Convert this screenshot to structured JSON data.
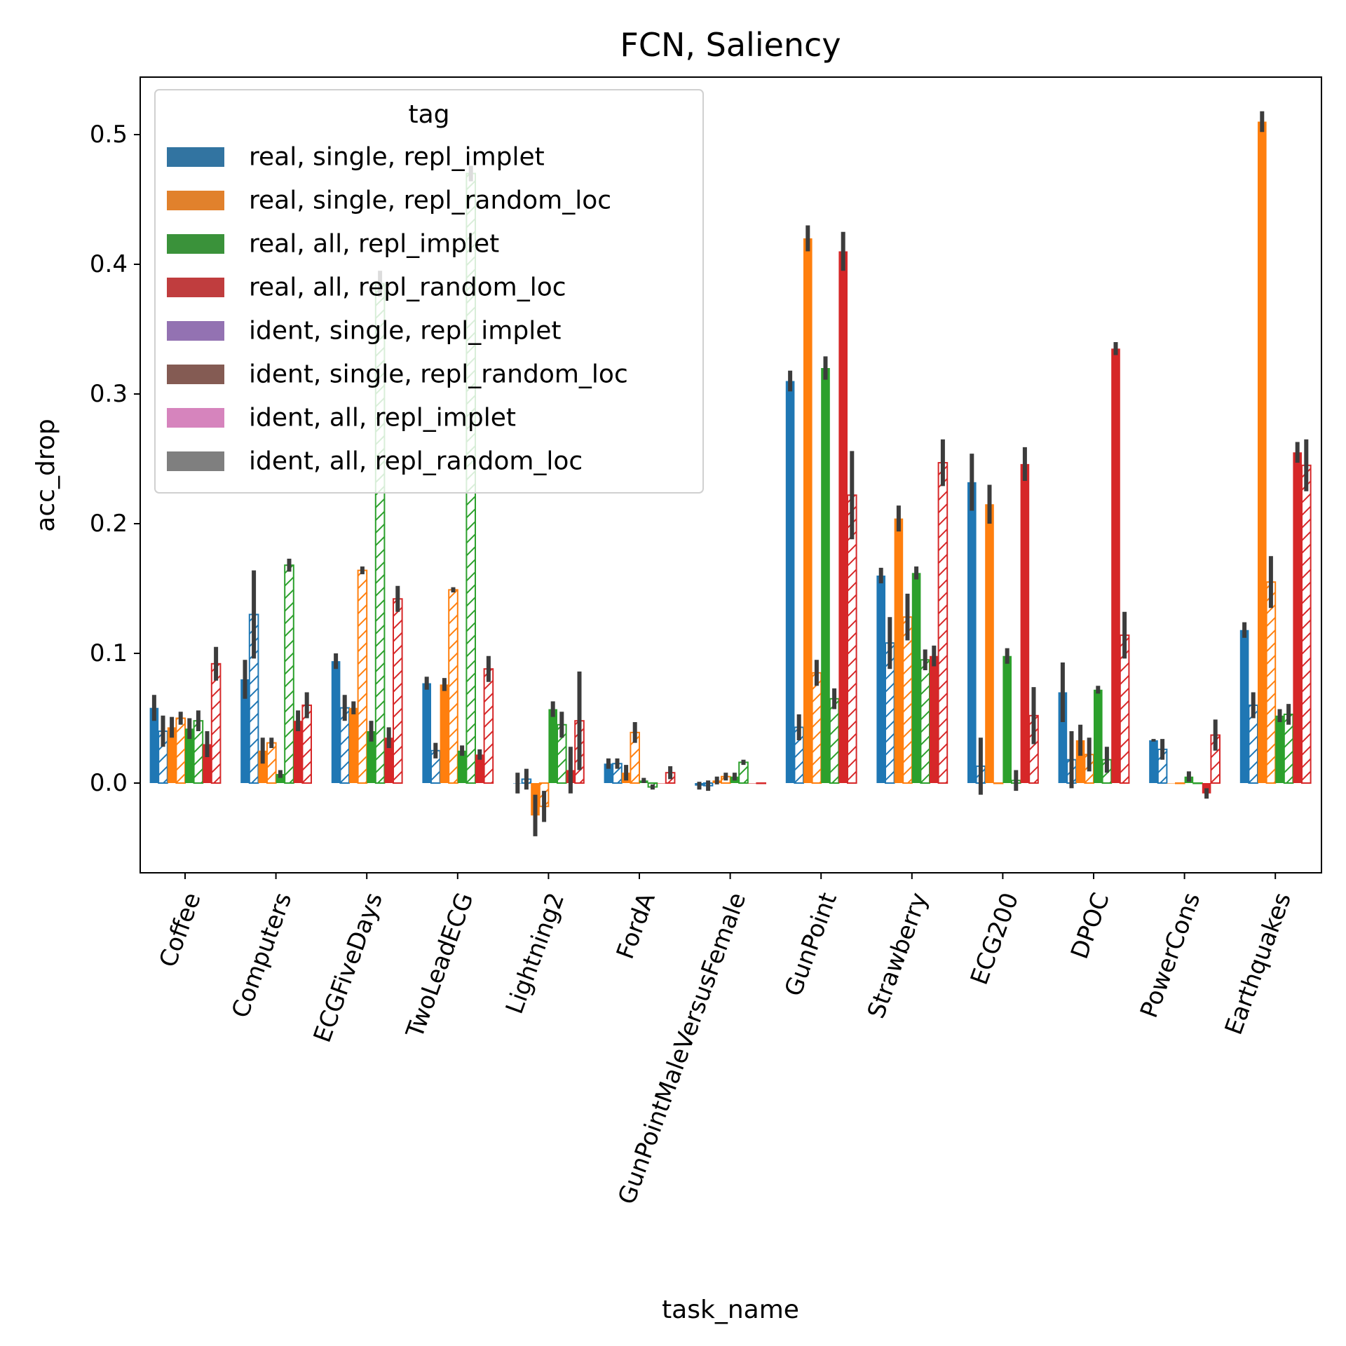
{
  "chart_data": {
    "type": "bar",
    "title": "FCN, Saliency",
    "xlabel": "task_name",
    "ylabel": "acc_drop",
    "ylim": [
      -0.068,
      0.545
    ],
    "yticks": [
      "0.0",
      "0.1",
      "0.2",
      "0.3",
      "0.4",
      "0.5"
    ],
    "categories": [
      "Coffee",
      "Computers",
      "ECGFiveDays",
      "TwoLeadECG",
      "Lightning2",
      "FordA",
      "GunPointMaleVersusFemale",
      "GunPoint",
      "Strawberry",
      "ECG200",
      "DPOC",
      "PowerCons",
      "Earthquakes"
    ],
    "legend": {
      "title": "tag",
      "placement": "upper left",
      "entries": [
        {
          "label": "real, single, repl_implet",
          "color": "#3274a1"
        },
        {
          "label": "real, single, repl_random_loc",
          "color": "#e1812c"
        },
        {
          "label": "real, all, repl_implet",
          "color": "#3a923a"
        },
        {
          "label": "real, all, repl_random_loc",
          "color": "#c03d3e"
        },
        {
          "label": "ident, single, repl_implet",
          "color": "#9372b2"
        },
        {
          "label": "ident, single, repl_random_loc",
          "color": "#845b53"
        },
        {
          "label": "ident, all, repl_implet",
          "color": "#d684bd"
        },
        {
          "label": "ident, all, repl_random_loc",
          "color": "#7f7f7f"
        }
      ]
    },
    "series": [
      {
        "color": "#1f77b4",
        "style": "solid",
        "values": [
          0.058,
          0.08,
          0.094,
          0.077,
          0.0,
          0.015,
          -0.002,
          0.31,
          0.16,
          0.232,
          0.07,
          0.033,
          0.118
        ],
        "errors": [
          0.01,
          0.015,
          0.006,
          0.005,
          0.008,
          0.004,
          0.003,
          0.008,
          0.006,
          0.022,
          0.023,
          0.001,
          0.006
        ]
      },
      {
        "color": "#1f77b4",
        "style": "hatched",
        "values": [
          0.04,
          0.13,
          0.058,
          0.025,
          0.003,
          0.015,
          -0.002,
          0.043,
          0.108,
          0.013,
          0.018,
          0.026,
          0.06
        ],
        "errors": [
          0.012,
          0.034,
          0.01,
          0.006,
          0.008,
          0.004,
          0.004,
          0.01,
          0.02,
          0.022,
          0.022,
          0.008,
          0.01
        ]
      },
      {
        "color": "#ff7f0e",
        "style": "solid",
        "values": [
          0.043,
          0.025,
          0.058,
          0.076,
          -0.025,
          0.008,
          0.002,
          0.42,
          0.204,
          0.215,
          0.033,
          0.0,
          0.51
        ],
        "errors": [
          0.008,
          0.01,
          0.005,
          0.005,
          0.016,
          0.006,
          0.003,
          0.01,
          0.01,
          0.015,
          0.012,
          0.0,
          0.008
        ]
      },
      {
        "color": "#ff7f0e",
        "style": "hatched",
        "values": [
          0.05,
          0.031,
          0.164,
          0.149,
          -0.018,
          0.039,
          0.005,
          0.085,
          0.128,
          0.0,
          0.022,
          0.0,
          0.155
        ],
        "errors": [
          0.005,
          0.004,
          0.003,
          0.002,
          0.012,
          0.008,
          0.003,
          0.01,
          0.018,
          0.0,
          0.013,
          0.0,
          0.02
        ]
      },
      {
        "color": "#2ca02c",
        "style": "solid",
        "values": [
          0.042,
          0.007,
          0.04,
          0.025,
          0.057,
          0.002,
          0.005,
          0.32,
          0.162,
          0.098,
          0.072,
          0.005,
          0.052
        ],
        "errors": [
          0.008,
          0.003,
          0.008,
          0.004,
          0.006,
          0.002,
          0.003,
          0.009,
          0.005,
          0.006,
          0.003,
          0.004,
          0.005
        ]
      },
      {
        "color": "#2ca02c",
        "style": "hatched",
        "values": [
          0.048,
          0.168,
          0.385,
          0.47,
          0.045,
          -0.003,
          0.016,
          0.065,
          0.095,
          0.002,
          0.018,
          0.0,
          0.053
        ],
        "errors": [
          0.008,
          0.005,
          0.01,
          0.006,
          0.01,
          0.002,
          0.002,
          0.008,
          0.008,
          0.008,
          0.01,
          0.0,
          0.008
        ]
      },
      {
        "color": "#d62728",
        "style": "solid",
        "values": [
          0.03,
          0.048,
          0.035,
          0.022,
          0.01,
          0.0,
          0.0,
          0.41,
          0.098,
          0.246,
          0.335,
          -0.008,
          0.255
        ],
        "errors": [
          0.01,
          0.008,
          0.008,
          0.004,
          0.018,
          0.0,
          0.0,
          0.015,
          0.008,
          0.013,
          0.005,
          0.004,
          0.008
        ]
      },
      {
        "color": "#d62728",
        "style": "hatched",
        "values": [
          0.092,
          0.06,
          0.142,
          0.088,
          0.048,
          0.008,
          0.0,
          0.222,
          0.247,
          0.052,
          0.114,
          0.037,
          0.245
        ],
        "errors": [
          0.013,
          0.01,
          0.01,
          0.01,
          0.038,
          0.005,
          0.0,
          0.034,
          0.018,
          0.022,
          0.018,
          0.012,
          0.02
        ]
      }
    ]
  }
}
